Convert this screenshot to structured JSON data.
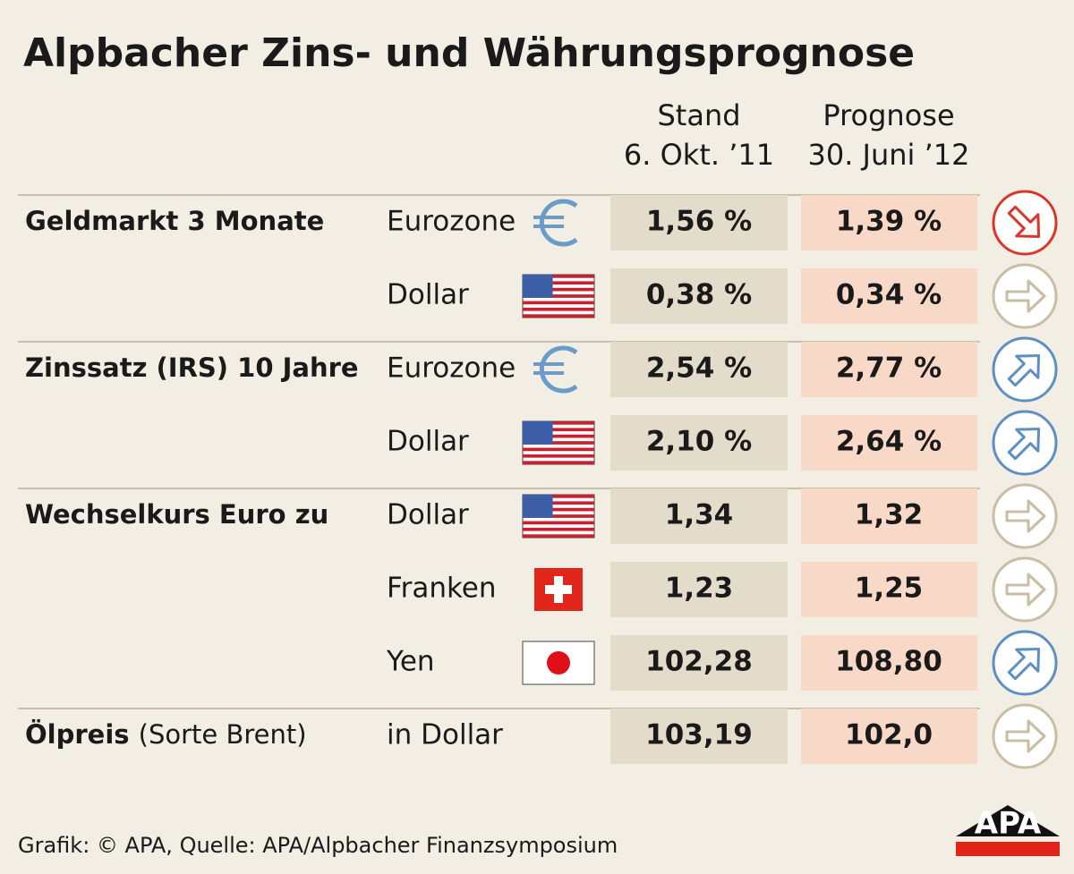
{
  "title": "Alpbacher Zins- und Währungsprognose",
  "headers": [
    [
      "Stand",
      "6. Okt. ’11"
    ],
    [
      "Prognose",
      "30. Juni ’12"
    ]
  ],
  "groups": [
    {
      "label": "Geldmarkt 3 Monate",
      "rows": [
        {
          "name": "Eurozone",
          "flag": "eu",
          "stand": "1,56 %",
          "prognose": "1,39 %",
          "trend": "down"
        },
        {
          "name": "Dollar",
          "flag": "us",
          "stand": "0,38 %",
          "prognose": "0,34 %",
          "trend": "right"
        }
      ]
    },
    {
      "label": "Zinssatz (IRS) 10 Jahre",
      "rows": [
        {
          "name": "Eurozone",
          "flag": "eu",
          "stand": "2,54 %",
          "prognose": "2,77 %",
          "trend": "up"
        },
        {
          "name": "Dollar",
          "flag": "us",
          "stand": "2,10 %",
          "prognose": "2,64 %",
          "trend": "up"
        }
      ]
    },
    {
      "label": "Wechselkurs Euro zu",
      "rows": [
        {
          "name": "Dollar",
          "flag": "us",
          "stand": "1,34",
          "prognose": "1,32",
          "trend": "right"
        },
        {
          "name": "Franken",
          "flag": "ch",
          "stand": "1,23",
          "prognose": "1,25",
          "trend": "right"
        },
        {
          "name": "Yen",
          "flag": "jp",
          "stand": "102,28",
          "prognose": "108,80",
          "trend": "up"
        }
      ]
    },
    {
      "label": "Ölpreis",
      "note": "(Sorte Brent)",
      "rows": [
        {
          "name": "in Dollar",
          "flag": null,
          "stand": "103,19",
          "prognose": "102,0",
          "trend": "right"
        }
      ]
    }
  ],
  "footer": "Grafik: © APA, Quelle: APA/Alpbacher Finanzsymposium",
  "logo": "APA"
}
